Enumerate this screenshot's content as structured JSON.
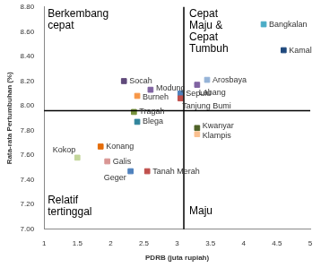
{
  "chart_data": {
    "type": "scatter",
    "x_label": "PDRB (juta rupiah)",
    "y_label": "Rata-rata Pertumbuhan (%)",
    "labels": [
      "Bangkalan",
      "Kamal",
      "Arosbaya",
      "Labang",
      "Socah",
      "Modung",
      "Burneh",
      "Sepulu",
      "Tanjung Bumi",
      "Tragah",
      "Blega",
      "Kwanyar",
      "Klampis",
      "Kokop",
      "Konang",
      "Galis",
      "Geger",
      "Tanah Merah"
    ],
    "x": [
      4.3,
      4.6,
      3.45,
      3.3,
      2.2,
      2.6,
      2.4,
      3.05,
      3.05,
      2.35,
      2.4,
      3.3,
      3.3,
      1.5,
      1.85,
      1.95,
      2.3,
      2.55
    ],
    "values": [
      8.66,
      8.45,
      8.21,
      8.17,
      8.2,
      8.13,
      8.08,
      8.1,
      8.06,
      7.95,
      7.87,
      7.82,
      7.77,
      7.58,
      7.67,
      7.55,
      7.47,
      7.47
    ],
    "colors": [
      "#4bacc6",
      "#1f497d",
      "#95b3d7",
      "#8064a2",
      "#604a7b",
      "#8064a2",
      "#f79646",
      "#4f81bd",
      "#c0504d",
      "#77933c",
      "#31859c",
      "#4f6228",
      "#fac090",
      "#c3d69b",
      "#e46c0a",
      "#d99694",
      "#4f81bd",
      "#c0504d"
    ],
    "marker": "square",
    "quadrant_x": 3.1,
    "quadrant_y": 7.96,
    "annotations": [
      "Berkembang cepat",
      "Cepat Maju & Cepat Tumbuh",
      "Relatif tertinggal",
      "Maju"
    ],
    "xlim": [
      1,
      5
    ],
    "xticks": [
      1,
      1.5,
      2,
      2.5,
      3,
      3.5,
      4,
      4.5,
      5
    ],
    "ylim": [
      7.0,
      8.8
    ],
    "yticks": [
      {
        "value": 7.0,
        "label": "7.00"
      },
      {
        "value": 7.2,
        "label": "7.20"
      },
      {
        "value": 7.4,
        "label": "7.40"
      },
      {
        "value": 7.6,
        "label": "7.60"
      },
      {
        "value": 7.8,
        "label": "7.80"
      },
      {
        "value": 8.0,
        "label": "8.00"
      },
      {
        "value": 8.2,
        "label": "8.20"
      },
      {
        "value": 8.4,
        "label": "8.40"
      },
      {
        "value": 8.6,
        "label": "8.60"
      },
      {
        "value": 8.8,
        "label": "8.80"
      }
    ],
    "grid": false
  }
}
